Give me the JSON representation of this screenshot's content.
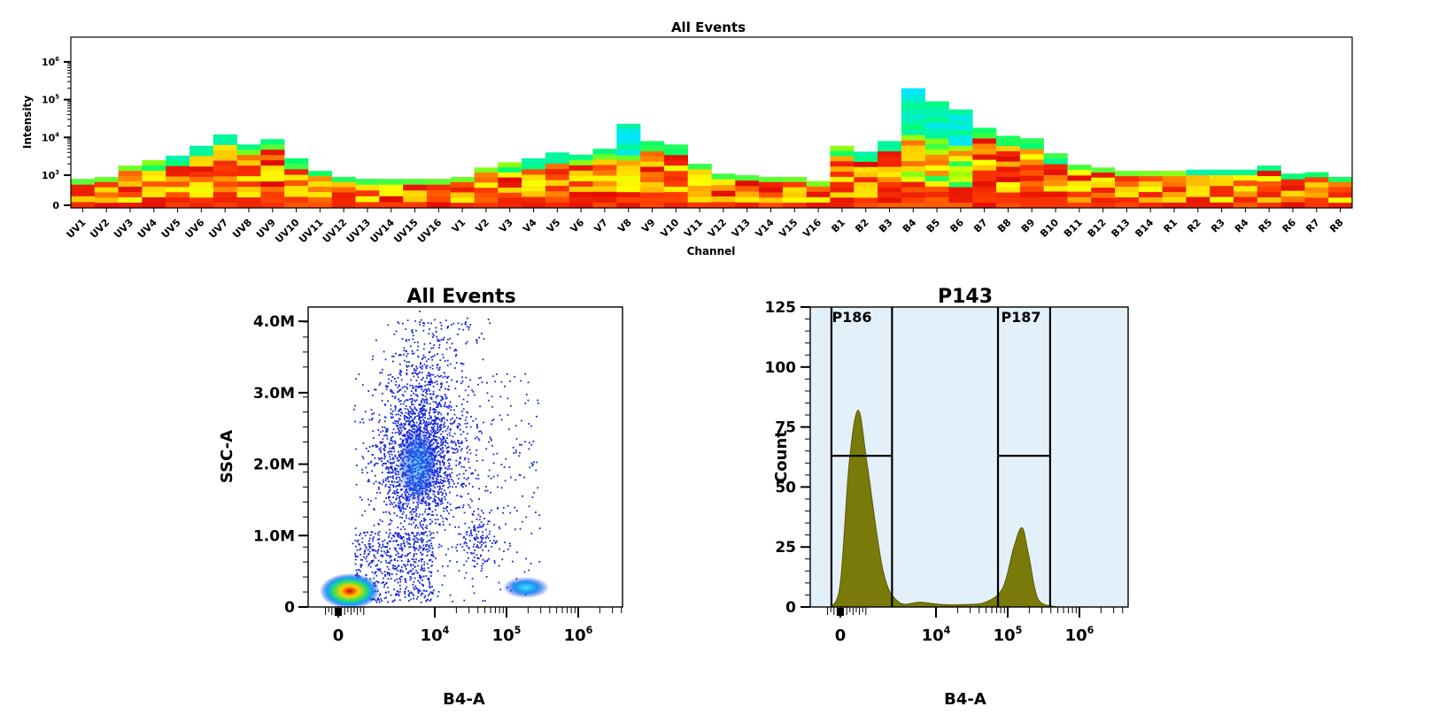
{
  "spectrum": {
    "title": "All Events",
    "xlabel": "Channel",
    "ylabel": "Intensity",
    "y_ticks": [
      {
        "label": "0",
        "exp": ""
      },
      {
        "label": "10",
        "exp": "3"
      },
      {
        "label": "10",
        "exp": "4"
      },
      {
        "label": "10",
        "exp": "5"
      },
      {
        "label": "10",
        "exp": "6"
      }
    ]
  },
  "scatter": {
    "title": "All Events",
    "xlabel": "B4-A",
    "ylabel": "SSC-A",
    "x_ticks": [
      {
        "label": "0",
        "exp": ""
      },
      {
        "label": "10",
        "exp": "4"
      },
      {
        "label": "10",
        "exp": "5"
      },
      {
        "label": "10",
        "exp": "6"
      }
    ],
    "y_ticks": [
      "0",
      "1.0M",
      "2.0M",
      "3.0M",
      "4.0M"
    ]
  },
  "histogram": {
    "title": "P143",
    "xlabel": "B4-A",
    "ylabel": "Count",
    "x_ticks": [
      {
        "label": "0",
        "exp": ""
      },
      {
        "label": "10",
        "exp": "4"
      },
      {
        "label": "10",
        "exp": "5"
      },
      {
        "label": "10",
        "exp": "6"
      }
    ],
    "y_ticks": [
      "0",
      "25",
      "50",
      "75",
      "100",
      "125"
    ],
    "gates": [
      "P186",
      "P187"
    ],
    "fill_color": "#7a7a0a",
    "gate_region_color": "#e3f0fa"
  },
  "chart_data": [
    {
      "type": "heatmap",
      "title": "All Events",
      "xlabel": "Channel",
      "ylabel": "Intensity",
      "categories": [
        "UV1",
        "UV2",
        "UV3",
        "UV4",
        "UV5",
        "UV6",
        "UV7",
        "UV8",
        "UV9",
        "UV10",
        "UV11",
        "UV12",
        "UV13",
        "UV14",
        "UV15",
        "UV16",
        "V1",
        "V2",
        "V3",
        "V4",
        "V5",
        "V6",
        "V7",
        "V8",
        "V9",
        "V10",
        "V11",
        "V12",
        "V13",
        "V14",
        "V15",
        "V16",
        "B1",
        "B2",
        "B3",
        "B4",
        "B5",
        "B6",
        "B7",
        "B8",
        "B9",
        "B10",
        "B11",
        "B12",
        "B13",
        "B14",
        "R1",
        "R2",
        "R3",
        "R4",
        "R5",
        "R6",
        "R7",
        "R8"
      ],
      "max_intensity": [
        800,
        900,
        1800,
        2500,
        3300,
        6000,
        12000,
        6500,
        9000,
        2800,
        1300,
        900,
        800,
        800,
        800,
        800,
        900,
        1600,
        2200,
        2800,
        4000,
        3500,
        5000,
        23000,
        8000,
        6500,
        2000,
        1100,
        1000,
        900,
        900,
        700,
        6000,
        4200,
        8000,
        200000,
        90000,
        55000,
        18000,
        11000,
        9500,
        3800,
        1900,
        1600,
        1300,
        1300,
        1300,
        1400,
        1400,
        1400,
        1800,
        1100,
        1200,
        900
      ],
      "ylim": [
        "0",
        "1e6"
      ],
      "yscale": "log"
    },
    {
      "type": "scatter",
      "title": "All Events",
      "xlabel": "B4-A",
      "ylabel": "SSC-A",
      "xscale": "biexponential",
      "populations": [
        {
          "x_center": 500,
          "y_center": 150000
        },
        {
          "x_center": 5000,
          "y_center": 2000000
        },
        {
          "x_center": 150000,
          "y_center": 250000
        }
      ],
      "ylim": [
        0,
        4200000
      ]
    },
    {
      "type": "area",
      "title": "P143",
      "xlabel": "B4-A",
      "ylabel": "Count",
      "xscale": "biexponential",
      "series": [
        {
          "x": [
            -300,
            0,
            300,
            600,
            900,
            1500,
            2500,
            5000,
            10000,
            20000,
            40000,
            70000,
            100000,
            130000,
            160000,
            220000,
            400000
          ],
          "y": [
            0,
            10,
            60,
            82,
            60,
            15,
            2,
            2,
            1,
            1,
            2,
            8,
            25,
            33,
            22,
            3,
            0
          ]
        }
      ],
      "gates": [
        {
          "name": "P186",
          "x_range": [
            -300,
            2000
          ],
          "level": 63
        },
        {
          "name": "P187",
          "x_range": [
            60000,
            320000
          ],
          "level": 63
        }
      ],
      "ylim": [
        0,
        125
      ]
    }
  ]
}
